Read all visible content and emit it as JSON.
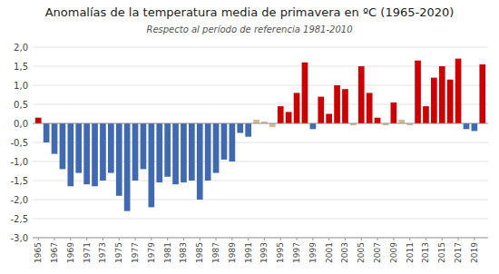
{
  "chart_data": {
    "type": "bar",
    "title": "Anomalías de la temperatura media de primavera en ºC (1965-2020)",
    "subtitle": "Respecto al período de referencia 1981-2010",
    "x": [
      1965,
      1966,
      1967,
      1968,
      1969,
      1970,
      1971,
      1972,
      1973,
      1974,
      1975,
      1976,
      1977,
      1978,
      1979,
      1980,
      1981,
      1982,
      1983,
      1984,
      1985,
      1986,
      1987,
      1988,
      1989,
      1990,
      1991,
      1992,
      1993,
      1994,
      1995,
      1996,
      1997,
      1998,
      1999,
      2000,
      2001,
      2002,
      2003,
      2004,
      2005,
      2006,
      2007,
      2008,
      2009,
      2010,
      2011,
      2012,
      2013,
      2014,
      2015,
      2016,
      2017,
      2018,
      2019,
      2020
    ],
    "values": [
      0.15,
      -0.5,
      -0.8,
      -1.2,
      -1.65,
      -1.3,
      -1.6,
      -1.65,
      -1.5,
      -1.3,
      -1.9,
      -2.3,
      -1.5,
      -1.2,
      -2.2,
      -1.55,
      -1.4,
      -1.6,
      -1.55,
      -1.5,
      -2.0,
      -1.5,
      -1.3,
      -0.95,
      -1.0,
      -0.25,
      -0.35,
      0.1,
      0.05,
      -0.1,
      0.45,
      0.3,
      0.8,
      1.6,
      -0.15,
      0.7,
      0.25,
      1.0,
      0.9,
      -0.05,
      1.5,
      0.8,
      0.15,
      -0.05,
      0.55,
      0.1,
      -0.05,
      1.65,
      0.45,
      1.2,
      1.5,
      1.15,
      1.7,
      -0.15,
      -0.2,
      1.55
    ],
    "colors": [
      "#cc0000",
      "#4169b0",
      "#4169b0",
      "#4169b0",
      "#4169b0",
      "#4169b0",
      "#4169b0",
      "#4169b0",
      "#4169b0",
      "#4169b0",
      "#4169b0",
      "#4169b0",
      "#4169b0",
      "#4169b0",
      "#4169b0",
      "#4169b0",
      "#4169b0",
      "#4169b0",
      "#4169b0",
      "#4169b0",
      "#4169b0",
      "#4169b0",
      "#4169b0",
      "#4169b0",
      "#4169b0",
      "#4169b0",
      "#4169b0",
      "#d4b896",
      "#d4b896",
      "#d4b896",
      "#cc0000",
      "#cc0000",
      "#cc0000",
      "#cc0000",
      "#4169b0",
      "#cc0000",
      "#cc0000",
      "#cc0000",
      "#cc0000",
      "#d4b896",
      "#cc0000",
      "#cc0000",
      "#cc0000",
      "#d4b896",
      "#cc0000",
      "#d4b896",
      "#d4b896",
      "#cc0000",
      "#cc0000",
      "#cc0000",
      "#cc0000",
      "#cc0000",
      "#cc0000",
      "#4169b0",
      "#4169b0",
      "#cc0000"
    ],
    "xlim": [
      1964.3,
      2020.7
    ],
    "xticks": [
      1965,
      1967,
      1969,
      1971,
      1973,
      1975,
      1977,
      1979,
      1981,
      1983,
      1985,
      1987,
      1989,
      1991,
      1993,
      1995,
      1997,
      1999,
      2001,
      2003,
      2005,
      2007,
      2009,
      2011,
      2013,
      2015,
      2017,
      2019
    ],
    "ylim": [
      -3.0,
      2.0
    ],
    "yticks": [
      {
        "value": -3.0,
        "label": "-3,0"
      },
      {
        "value": -2.5,
        "label": "-2,5"
      },
      {
        "value": -2.0,
        "label": "-2,0"
      },
      {
        "value": -1.5,
        "label": "-1,5"
      },
      {
        "value": -1.0,
        "label": "-1,0"
      },
      {
        "value": -0.5,
        "label": "-0,5"
      },
      {
        "value": 0.0,
        "label": "0,0"
      },
      {
        "value": 0.5,
        "label": "0,5"
      },
      {
        "value": 1.0,
        "label": "1,0"
      },
      {
        "value": 1.5,
        "label": "1,5"
      },
      {
        "value": 2.0,
        "label": "2,0"
      }
    ],
    "grid": true
  }
}
